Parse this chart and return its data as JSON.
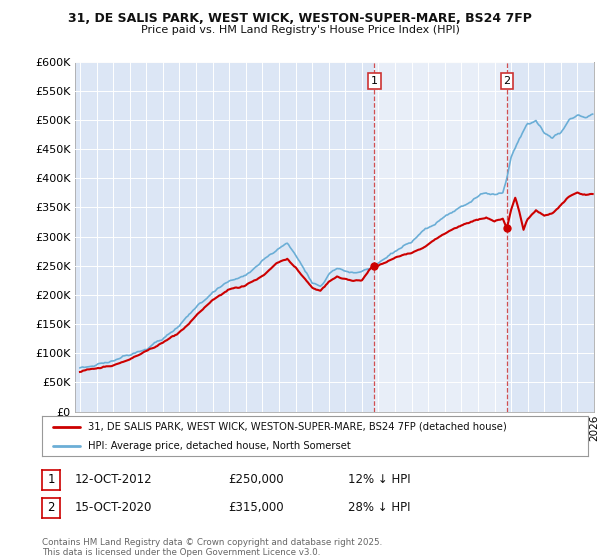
{
  "title_line1": "31, DE SALIS PARK, WEST WICK, WESTON-SUPER-MARE, BS24 7FP",
  "title_line2": "Price paid vs. HM Land Registry's House Price Index (HPI)",
  "background_color": "#ffffff",
  "plot_bg_color": "#dce6f5",
  "grid_color": "#ffffff",
  "hpi_color": "#6baed6",
  "price_color": "#cc0000",
  "vline_color": "#cc3333",
  "span_color": "#dce6f5",
  "legend_label1": "31, DE SALIS PARK, WEST WICK, WESTON-SUPER-MARE, BS24 7FP (detached house)",
  "legend_label2": "HPI: Average price, detached house, North Somerset",
  "footer": "Contains HM Land Registry data © Crown copyright and database right 2025.\nThis data is licensed under the Open Government Licence v3.0.",
  "marker1_label": "1",
  "marker1_date": "12-OCT-2012",
  "marker1_price_str": "£250,000",
  "marker1_note": "12% ↓ HPI",
  "marker1_year": 2012,
  "marker1_month": 10,
  "marker1_price": 250000,
  "marker2_label": "2",
  "marker2_date": "15-OCT-2020",
  "marker2_price_str": "£315,000",
  "marker2_note": "28% ↓ HPI",
  "marker2_year": 2020,
  "marker2_month": 10,
  "marker2_price": 315000,
  "ylim": [
    0,
    600000
  ],
  "ytick_step": 50000,
  "x_start_year": 1995,
  "x_end_year": 2026
}
